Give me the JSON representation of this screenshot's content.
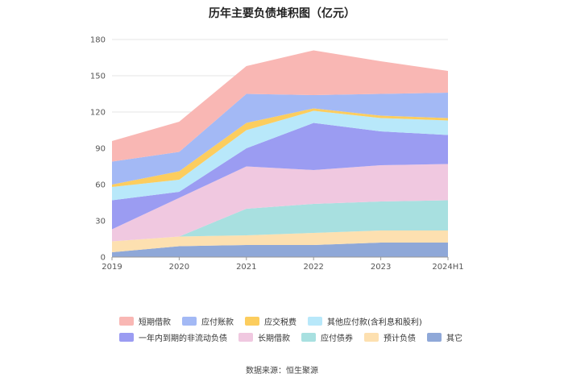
{
  "chart_data": {
    "type": "area",
    "stacked": true,
    "title": "历年主要负债堆积图（亿元）",
    "x": [
      "2019",
      "2020",
      "2021",
      "2022",
      "2023",
      "2024H1"
    ],
    "ylim": [
      0,
      180
    ],
    "yticks": [
      0,
      30,
      60,
      90,
      120,
      150,
      180
    ],
    "grid": true,
    "legend_position": "bottom",
    "series": [
      {
        "name": "其它",
        "color": "#8fa8d8",
        "values": [
          4,
          9,
          10,
          10,
          12,
          12
        ]
      },
      {
        "name": "预计负债",
        "color": "#fde0b0",
        "values": [
          9,
          8,
          8,
          10,
          10,
          10
        ]
      },
      {
        "name": "应付债券",
        "color": "#a8e0e0",
        "values": [
          0,
          0,
          22,
          24,
          24,
          25
        ]
      },
      {
        "name": "长期借款",
        "color": "#f0c8e0",
        "values": [
          10,
          32,
          35,
          28,
          30,
          30
        ]
      },
      {
        "name": "一年内到期的非流动负债",
        "color": "#9b9cf2",
        "values": [
          24,
          5,
          15,
          39,
          28,
          24
        ]
      },
      {
        "name": "其他应付款(含利息和股利)",
        "color": "#b8e8fa",
        "values": [
          11,
          10,
          15,
          10,
          11,
          12
        ]
      },
      {
        "name": "应交税费",
        "color": "#fccd5e",
        "values": [
          2,
          7,
          6,
          2,
          2,
          2
        ]
      },
      {
        "name": "应付账款",
        "color": "#a3b9f5",
        "values": [
          19,
          16,
          24,
          11,
          18,
          21
        ]
      },
      {
        "name": "短期借款",
        "color": "#f9b7b4",
        "values": [
          17,
          25,
          23,
          37,
          27,
          18
        ]
      }
    ],
    "legend_rows": [
      [
        "短期借款",
        "应付账款",
        "应交税费",
        "其他应付款(含利息和股利)"
      ],
      [
        "一年内到期的非流动负债",
        "长期借款",
        "应付债券",
        "预计负债",
        "其它"
      ]
    ]
  },
  "source_text": "数据来源：恒生聚源"
}
